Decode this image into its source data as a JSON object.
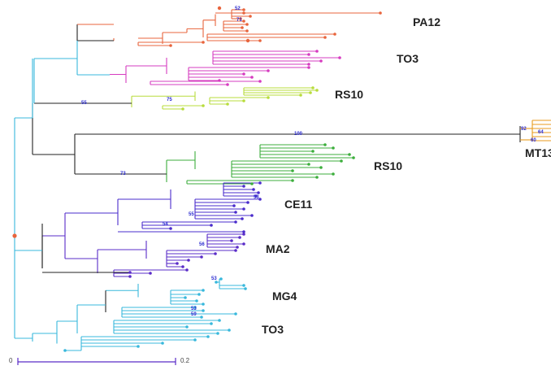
{
  "clades": [
    {
      "id": "pa12",
      "label": "PA12",
      "color": "#e8643c"
    },
    {
      "id": "to3a",
      "label": "TO3",
      "color": "#d63cc0"
    },
    {
      "id": "rs10a",
      "label": "RS10",
      "color": "#b8dc3c"
    },
    {
      "id": "mt13",
      "label": "MT13",
      "color": "#e89a1c"
    },
    {
      "id": "rs10b",
      "label": "RS10",
      "color": "#3cae3c"
    },
    {
      "id": "ce11",
      "label": "CE11",
      "color": "#4a2ccc"
    },
    {
      "id": "ma2",
      "label": "MA2",
      "color": "#5a2cc8"
    },
    {
      "id": "mg4",
      "label": "MG4",
      "color": "#38b8dc"
    },
    {
      "id": "to3b",
      "label": "TO3",
      "color": "#38b8dc"
    }
  ],
  "bootstrap": [
    "52",
    "71",
    "75",
    "55",
    "100",
    "73",
    "92",
    "64",
    "60",
    "53",
    "55",
    "54",
    "56",
    "53",
    "53",
    "59"
  ],
  "scale": {
    "start": "0",
    "end": "0.2"
  },
  "colors": {
    "backbone": "#38b8dc",
    "internal": "#222222",
    "root_node": "#e8643c",
    "scale_bar": "#5a2cc8"
  }
}
